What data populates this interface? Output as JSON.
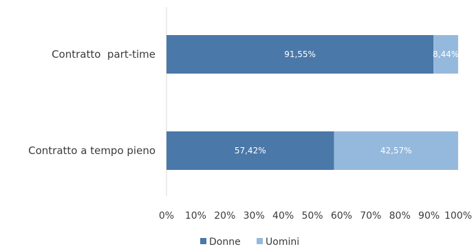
{
  "chart_data": {
    "type": "bar",
    "orientation": "horizontal",
    "stacked": true,
    "categories": [
      "Contratto  part-time",
      "Contratto a tempo pieno"
    ],
    "series": [
      {
        "name": "Donne",
        "values": [
          91.55,
          57.42
        ],
        "labels": [
          "91,55%",
          "57,42%"
        ],
        "color": "#4a78a8"
      },
      {
        "name": "Uomini",
        "values": [
          8.44,
          42.57
        ],
        "labels": [
          "8,44%",
          "42,57%"
        ],
        "color": "#95b9dc"
      }
    ],
    "xlim": [
      0,
      100
    ],
    "xticks": [
      "0%",
      "10%",
      "20%",
      "30%",
      "40%",
      "50%",
      "60%",
      "70%",
      "80%",
      "90%",
      "100%"
    ],
    "grid": false,
    "legend_position": "bottom",
    "axis_color": "#d9d9d9",
    "label_color": "#ffffff"
  }
}
